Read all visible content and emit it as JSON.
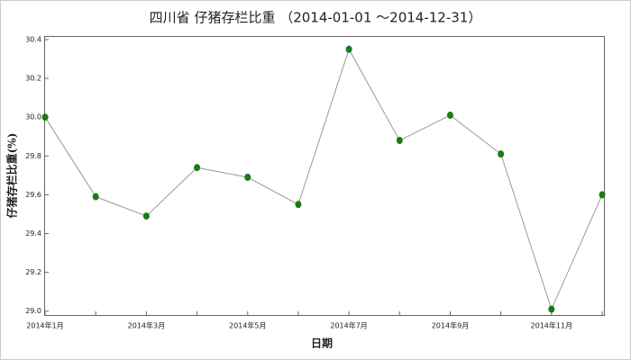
{
  "chart_data": {
    "type": "line",
    "title": "四川省 仔猪存栏比重 （2014-01-01 ～2014-12-31）",
    "x_label": "日期",
    "y_label": "仔猪存栏比重(%)",
    "categories": [
      "2014年1月",
      null,
      "2014年3月",
      null,
      "2014年5月",
      null,
      "2014年7月",
      null,
      "2014年9月",
      null,
      "2014年11月",
      null
    ],
    "series": [
      {
        "name": "仔猪存栏比重",
        "color": "#1a7a1a",
        "line_color": "#999999",
        "values": [
          30.0,
          29.59,
          29.49,
          29.74,
          29.69,
          29.55,
          30.35,
          29.88,
          30.01,
          29.81,
          29.01,
          29.6
        ]
      }
    ],
    "ylim": [
      28.98,
      30.4
    ],
    "yticks": [
      {
        "value": 29.0,
        "label": "29.0"
      },
      {
        "value": 29.2,
        "label": "29.2"
      },
      {
        "value": 29.4,
        "label": "29.4"
      },
      {
        "value": 29.6,
        "label": "29.6"
      },
      {
        "value": 29.8,
        "label": "29.8"
      },
      {
        "value": 30.0,
        "label": "30.0"
      },
      {
        "value": 30.2,
        "label": "30.2"
      },
      {
        "value": 30.4,
        "label": "30.4"
      }
    ],
    "grid": false
  }
}
